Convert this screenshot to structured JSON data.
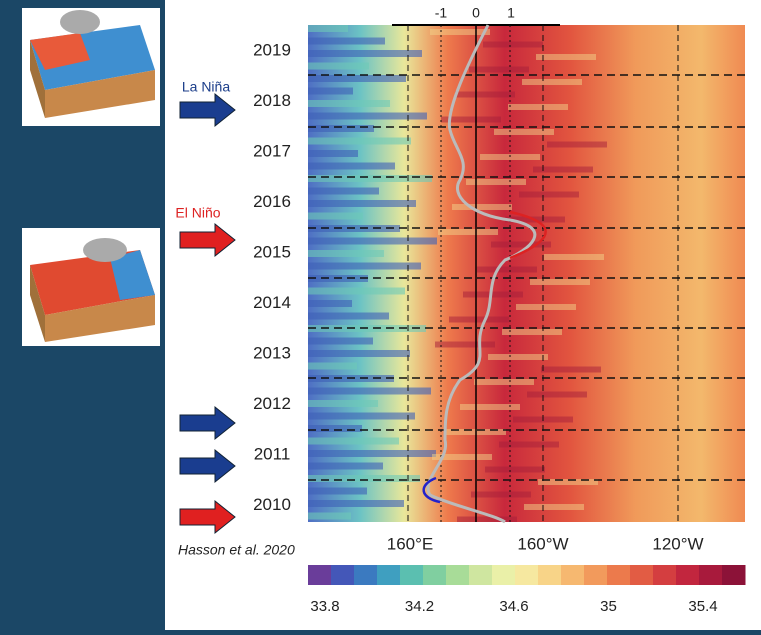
{
  "top_axis": {
    "labels": [
      "-1",
      "0",
      "1"
    ]
  },
  "years": [
    "2019",
    "2018",
    "2017",
    "2016",
    "2015",
    "2014",
    "2013",
    "2012",
    "2011",
    "2010"
  ],
  "longitudes": [
    "160°E",
    "160°W",
    "120°W"
  ],
  "annotations": {
    "la_nina": "La Niña",
    "el_nino": "El Niño",
    "credit": "Hasson et al. 2020"
  },
  "colorbar": {
    "ticks": [
      33.8,
      34.2,
      34.6,
      35,
      35.4
    ]
  }
}
